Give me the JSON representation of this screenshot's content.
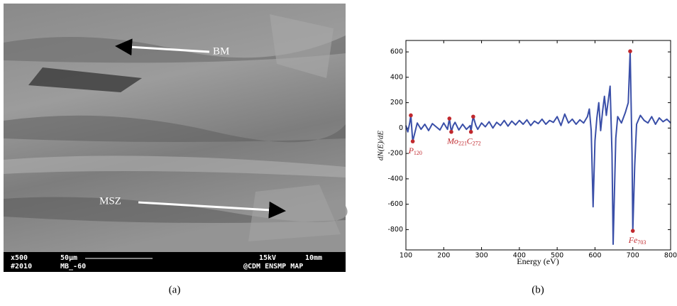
{
  "figure": {
    "panel_a": {
      "label": "(a)",
      "arrows": [
        "BM",
        "MSZ"
      ],
      "info_bar": {
        "left_top": "x500",
        "left_bottom": "#2010",
        "mid_top": "50µm",
        "mid_bottom": "MB_-60",
        "right_top_1": "15kV",
        "right_top_2": "10mm",
        "right_bottom": "@CDM ENSMP MAP"
      }
    },
    "panel_b": {
      "label": "(b)"
    }
  },
  "chart_data": {
    "type": "line",
    "x_label": "Energy (eV)",
    "y_label": "dN(E)/dE",
    "xlim": [
      100,
      800
    ],
    "xticks": [
      100,
      200,
      300,
      400,
      500,
      600,
      700,
      800
    ],
    "ylim": [
      -960,
      690
    ],
    "yticks": [
      -800,
      -600,
      -400,
      -200,
      0,
      200,
      400,
      600
    ],
    "series": [
      {
        "color": "#3a4fa8",
        "x": [
          100,
          105,
          110,
          113,
          118,
          125,
          130,
          140,
          150,
          160,
          170,
          180,
          190,
          200,
          210,
          215,
          220,
          225,
          230,
          240,
          250,
          260,
          270,
          272,
          275,
          278,
          285,
          290,
          300,
          310,
          320,
          330,
          340,
          350,
          360,
          370,
          380,
          390,
          400,
          410,
          420,
          430,
          440,
          450,
          460,
          470,
          480,
          490,
          500,
          510,
          520,
          530,
          540,
          550,
          560,
          570,
          580,
          585,
          590,
          595,
          600,
          605,
          610,
          615,
          620,
          625,
          630,
          640,
          645,
          648,
          655,
          660,
          670,
          680,
          688,
          693,
          698,
          700,
          705,
          710,
          720,
          730,
          740,
          750,
          760,
          770,
          780,
          790,
          800
        ],
        "values": [
          20,
          -30,
          40,
          100,
          -105,
          -20,
          40,
          -10,
          30,
          -20,
          35,
          10,
          -15,
          40,
          -10,
          75,
          -30,
          20,
          45,
          -15,
          30,
          -10,
          20,
          -30,
          40,
          90,
          20,
          -10,
          40,
          10,
          50,
          0,
          45,
          20,
          60,
          15,
          55,
          25,
          60,
          30,
          65,
          20,
          55,
          35,
          70,
          30,
          60,
          45,
          90,
          20,
          110,
          40,
          70,
          30,
          65,
          40,
          90,
          150,
          -20,
          -620,
          -100,
          80,
          200,
          -20,
          130,
          250,
          100,
          330,
          -200,
          -915,
          -80,
          90,
          40,
          120,
          200,
          605,
          -200,
          -810,
          -300,
          30,
          100,
          60,
          40,
          90,
          30,
          80,
          50,
          70,
          40
        ]
      }
    ],
    "marker_color": "#c0282d",
    "peak_markers": {
      "x": [
        113,
        215,
        278,
        693
      ],
      "values": [
        100,
        75,
        90,
        605
      ]
    },
    "dip_markers": {
      "x": [
        118,
        220,
        272,
        700
      ],
      "values": [
        -105,
        -30,
        -30,
        -810
      ],
      "labels": [
        {
          "text": "P",
          "sub": "120"
        },
        {
          "text": "Mo",
          "sub": "221"
        },
        {
          "text": "C",
          "sub": "272"
        },
        {
          "text": "Fe",
          "sub": "703"
        }
      ]
    }
  }
}
